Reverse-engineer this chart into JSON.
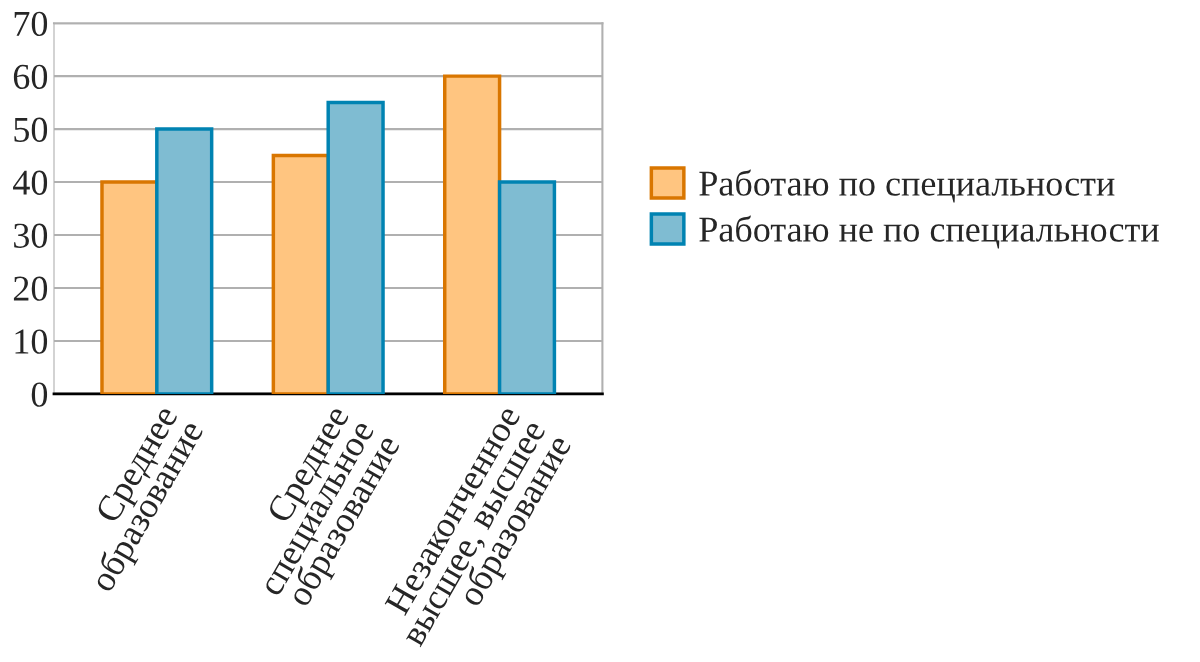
{
  "chart_data": {
    "type": "bar",
    "categories": [
      "Среднее\nобразование",
      "Среднее\nспециальное\nобразование",
      "Незаконченное\nвысшее, высшее\nобразование"
    ],
    "series": [
      {
        "name": "Работаю по специальности",
        "color": "#ffc580",
        "values": [
          40,
          45,
          60
        ]
      },
      {
        "name": "Работаю не по специальности",
        "color": "#7fbcd2",
        "values": [
          50,
          55,
          40
        ]
      }
    ],
    "ylim": [
      0,
      70
    ],
    "yticks": [
      0,
      10,
      20,
      30,
      40,
      50,
      60,
      70
    ],
    "grid": "y",
    "legend": "right"
  }
}
